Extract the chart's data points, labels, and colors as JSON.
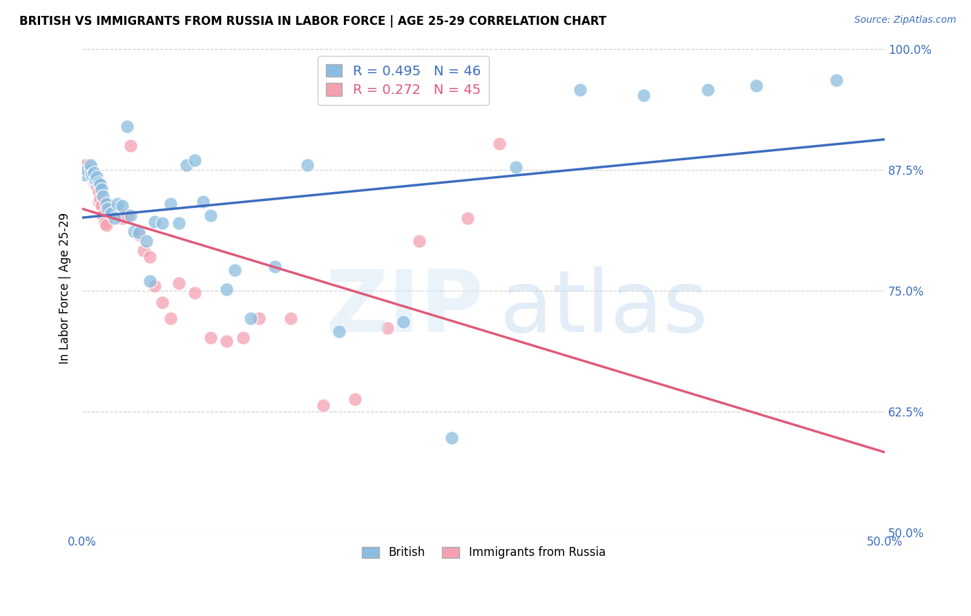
{
  "title": "BRITISH VS IMMIGRANTS FROM RUSSIA IN LABOR FORCE | AGE 25-29 CORRELATION CHART",
  "source": "Source: ZipAtlas.com",
  "ylabel": "In Labor Force | Age 25-29",
  "xlim": [
    0.0,
    0.5
  ],
  "ylim": [
    0.5,
    1.005
  ],
  "xticks": [
    0.0,
    0.1,
    0.2,
    0.3,
    0.4,
    0.5
  ],
  "xtick_labels": [
    "0.0%",
    "",
    "",
    "",
    "",
    "50.0%"
  ],
  "yticks": [
    0.5,
    0.625,
    0.75,
    0.875,
    1.0
  ],
  "ytick_labels": [
    "50.0%",
    "62.5%",
    "75.0%",
    "87.5%",
    "100.0%"
  ],
  "blue_color": "#8bbde0",
  "pink_color": "#f4a0b0",
  "blue_line_color": "#3c6dbf",
  "pink_line_color": "#e05a7a",
  "legend_blue_label": "R = 0.495   N = 46",
  "legend_pink_label": "R = 0.272   N = 45",
  "legend_british": "British",
  "legend_russia": "Immigrants from Russia",
  "british_x": [
    0.001,
    0.003,
    0.005,
    0.005,
    0.006,
    0.007,
    0.008,
    0.009,
    0.01,
    0.011,
    0.012,
    0.013,
    0.015,
    0.016,
    0.018,
    0.02,
    0.022,
    0.025,
    0.028,
    0.03,
    0.032,
    0.035,
    0.04,
    0.042,
    0.045,
    0.05,
    0.055,
    0.06,
    0.065,
    0.07,
    0.075,
    0.08,
    0.09,
    0.095,
    0.105,
    0.12,
    0.14,
    0.16,
    0.2,
    0.23,
    0.27,
    0.31,
    0.35,
    0.39,
    0.42,
    0.47
  ],
  "british_y": [
    0.87,
    0.875,
    0.875,
    0.88,
    0.87,
    0.872,
    0.865,
    0.868,
    0.862,
    0.86,
    0.855,
    0.848,
    0.84,
    0.835,
    0.83,
    0.825,
    0.84,
    0.838,
    0.92,
    0.828,
    0.812,
    0.81,
    0.802,
    0.76,
    0.822,
    0.82,
    0.84,
    0.82,
    0.88,
    0.885,
    0.842,
    0.828,
    0.752,
    0.772,
    0.722,
    0.775,
    0.88,
    0.708,
    0.718,
    0.598,
    0.878,
    0.958,
    0.952,
    0.958,
    0.962,
    0.968
  ],
  "russia_x": [
    0.001,
    0.002,
    0.003,
    0.004,
    0.005,
    0.005,
    0.006,
    0.007,
    0.007,
    0.008,
    0.008,
    0.009,
    0.01,
    0.01,
    0.011,
    0.012,
    0.013,
    0.014,
    0.015,
    0.016,
    0.018,
    0.02,
    0.022,
    0.025,
    0.028,
    0.03,
    0.035,
    0.038,
    0.042,
    0.045,
    0.05,
    0.055,
    0.06,
    0.07,
    0.08,
    0.09,
    0.1,
    0.11,
    0.13,
    0.15,
    0.17,
    0.19,
    0.21,
    0.24,
    0.26
  ],
  "russia_y": [
    0.878,
    0.88,
    0.875,
    0.875,
    0.878,
    0.875,
    0.872,
    0.87,
    0.862,
    0.87,
    0.862,
    0.858,
    0.852,
    0.842,
    0.845,
    0.838,
    0.828,
    0.82,
    0.818,
    0.838,
    0.835,
    0.832,
    0.828,
    0.825,
    0.828,
    0.9,
    0.808,
    0.792,
    0.785,
    0.755,
    0.738,
    0.722,
    0.758,
    0.748,
    0.702,
    0.698,
    0.702,
    0.722,
    0.722,
    0.632,
    0.638,
    0.712,
    0.802,
    0.825,
    0.902
  ]
}
